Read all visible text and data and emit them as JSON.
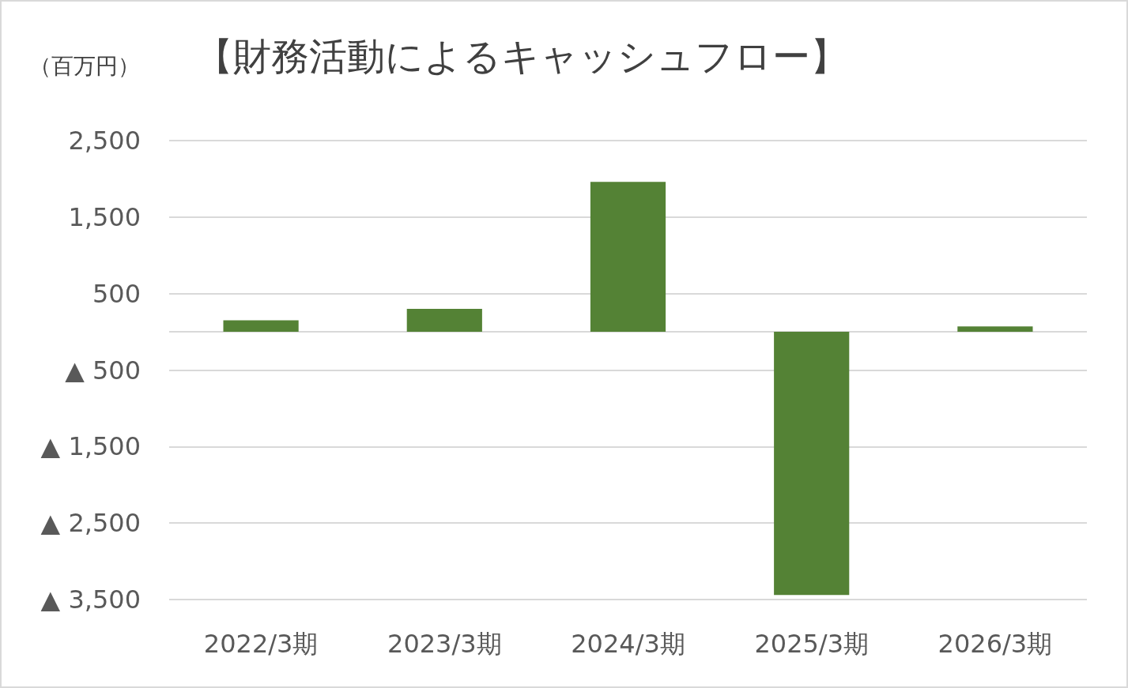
{
  "chart_data": {
    "type": "bar",
    "title": "【財務活動によるキャッシュフロー】",
    "ylabel": "（百万円）",
    "categories": [
      "2022/3期",
      "2023/3期",
      "2024/3期",
      "2025/3期",
      "2026/3期"
    ],
    "values": [
      150,
      300,
      1960,
      -3440,
      70
    ],
    "color": "#548235",
    "ylim": [
      -3500,
      2500
    ],
    "yticks": [
      {
        "value": -3500,
        "label": "▲ 3,500"
      },
      {
        "value": -2500,
        "label": "▲ 2,500"
      },
      {
        "value": -1500,
        "label": "▲ 1,500"
      },
      {
        "value": -500,
        "label": "▲ 500"
      },
      {
        "value": 0,
        "label": null
      },
      {
        "value": 500,
        "label": "500"
      },
      {
        "value": 1500,
        "label": "1,500"
      },
      {
        "value": 2500,
        "label": "2,500"
      }
    ],
    "grid": true
  }
}
